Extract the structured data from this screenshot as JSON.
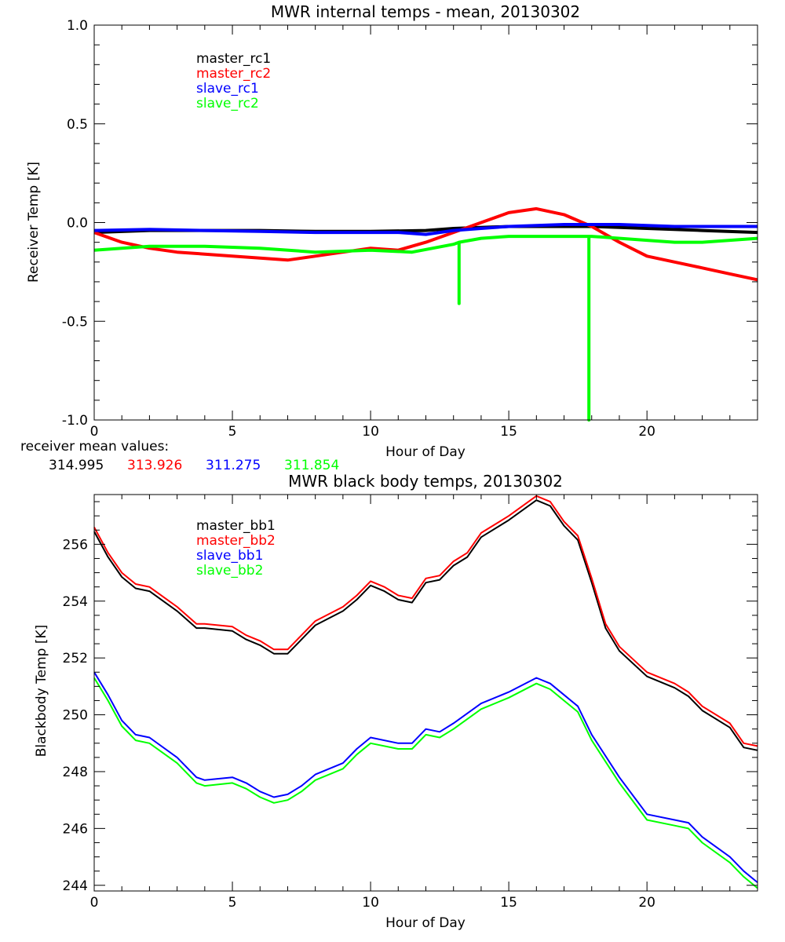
{
  "colors": {
    "black": "#000000",
    "red": "#ff0000",
    "blue": "#0000ff",
    "green": "#00ff00"
  },
  "mean_values": {
    "label": "receiver mean values:",
    "values": [
      "314.995",
      "313.926",
      "311.275",
      "311.854"
    ]
  },
  "chart_data": [
    {
      "type": "line",
      "title": "MWR internal temps - mean, 20130302",
      "xlabel": "Hour of Day",
      "ylabel": "Receiver Temp [K]",
      "xlim": [
        0,
        24
      ],
      "ylim": [
        -1.0,
        1.0
      ],
      "xticks": [
        "0",
        "5",
        "10",
        "15",
        "20"
      ],
      "yticks": [
        "-1.0",
        "-0.5",
        "0.0",
        "0.5",
        "1.0"
      ],
      "legend_placement": "top-left",
      "series": [
        {
          "name": "master_rc1",
          "color": "#000000",
          "x": [
            0,
            2,
            4,
            6,
            8,
            10,
            12,
            13,
            15,
            18,
            20,
            22,
            24
          ],
          "y": [
            -0.05,
            -0.04,
            -0.04,
            -0.04,
            -0.045,
            -0.045,
            -0.04,
            -0.03,
            -0.02,
            -0.02,
            -0.03,
            -0.04,
            -0.05
          ]
        },
        {
          "name": "master_rc2",
          "color": "#ff0000",
          "x": [
            0,
            1,
            2,
            3,
            4,
            5,
            6,
            7,
            8,
            9,
            10,
            11,
            12,
            13,
            14,
            15,
            16,
            17,
            18,
            19,
            20,
            21,
            22,
            23,
            24
          ],
          "y": [
            -0.05,
            -0.1,
            -0.13,
            -0.15,
            -0.16,
            -0.17,
            -0.18,
            -0.19,
            -0.17,
            -0.15,
            -0.13,
            -0.14,
            -0.1,
            -0.05,
            0.0,
            0.05,
            0.07,
            0.04,
            -0.02,
            -0.1,
            -0.17,
            -0.2,
            -0.23,
            -0.26,
            -0.29
          ]
        },
        {
          "name": "slave_rc1",
          "color": "#0000ff",
          "x": [
            0,
            2,
            4,
            6,
            8,
            10,
            11,
            12,
            13,
            14,
            15,
            17,
            19,
            21,
            24
          ],
          "y": [
            -0.04,
            -0.035,
            -0.04,
            -0.045,
            -0.05,
            -0.05,
            -0.05,
            -0.06,
            -0.04,
            -0.03,
            -0.02,
            -0.01,
            -0.01,
            -0.02,
            -0.02
          ]
        },
        {
          "name": "slave_rc2",
          "color": "#00ff00",
          "x": [
            0,
            2,
            4,
            6,
            8,
            10,
            11.5,
            13,
            13.2,
            13.2,
            13.2,
            14,
            15,
            17,
            17.9,
            17.9,
            17.9,
            18,
            20,
            21,
            22,
            24
          ],
          "y": [
            -0.14,
            -0.12,
            -0.12,
            -0.13,
            -0.15,
            -0.14,
            -0.15,
            -0.11,
            -0.1,
            -0.41,
            -0.1,
            -0.08,
            -0.07,
            -0.07,
            -0.07,
            -1.0,
            -0.07,
            -0.07,
            -0.09,
            -0.1,
            -0.1,
            -0.08
          ]
        }
      ]
    },
    {
      "type": "line",
      "title": "MWR black body temps, 20130302",
      "xlabel": "Hour of Day",
      "ylabel": "Blackbody Temp [K]",
      "xlim": [
        0,
        24
      ],
      "ylim": [
        243.8,
        257.75
      ],
      "xticks": [
        "0",
        "5",
        "10",
        "15",
        "20"
      ],
      "yticks": [
        "244",
        "246",
        "248",
        "250",
        "252",
        "254",
        "256"
      ],
      "legend_placement": "top-left",
      "series": [
        {
          "name": "master_bb1",
          "color": "#000000",
          "x": [
            0,
            0.5,
            1,
            1.5,
            2,
            3,
            3.7,
            4,
            5,
            5.5,
            6,
            6.5,
            7,
            7.5,
            8,
            9,
            9.5,
            10,
            10.5,
            11,
            11.5,
            12,
            12.5,
            13,
            13.5,
            14,
            15,
            16,
            16.5,
            17,
            17.5,
            18,
            18.5,
            19,
            20,
            21,
            21.5,
            22,
            23,
            23.5,
            24
          ],
          "y": [
            256.45,
            255.55,
            254.85,
            254.45,
            254.35,
            253.65,
            253.05,
            253.05,
            252.95,
            252.65,
            252.45,
            252.15,
            252.15,
            252.65,
            253.15,
            253.65,
            254.05,
            254.55,
            254.35,
            254.05,
            253.95,
            254.65,
            254.75,
            255.25,
            255.55,
            256.25,
            256.85,
            257.55,
            257.35,
            256.65,
            256.15,
            254.65,
            253.05,
            252.25,
            251.35,
            250.95,
            250.65,
            250.15,
            249.55,
            248.85,
            248.75
          ]
        },
        {
          "name": "master_bb2",
          "color": "#ff0000",
          "x": [
            0,
            0.5,
            1,
            1.5,
            2,
            3,
            3.7,
            4,
            5,
            5.5,
            6,
            6.5,
            7,
            7.5,
            8,
            9,
            9.5,
            10,
            10.5,
            11,
            11.5,
            12,
            12.5,
            13,
            13.5,
            14,
            15,
            16,
            16.5,
            17,
            17.5,
            18,
            18.5,
            19,
            20,
            21,
            21.5,
            22,
            23,
            23.5,
            24
          ],
          "y": [
            256.6,
            255.7,
            255.0,
            254.6,
            254.5,
            253.8,
            253.2,
            253.2,
            253.1,
            252.8,
            252.6,
            252.3,
            252.3,
            252.8,
            253.3,
            253.8,
            254.2,
            254.7,
            254.5,
            254.2,
            254.1,
            254.8,
            254.9,
            255.4,
            255.7,
            256.4,
            257.0,
            257.7,
            257.5,
            256.8,
            256.3,
            254.8,
            253.2,
            252.4,
            251.5,
            251.1,
            250.8,
            250.3,
            249.7,
            249.0,
            248.9
          ]
        },
        {
          "name": "slave_bb1",
          "color": "#0000ff",
          "x": [
            0,
            0.5,
            1,
            1.5,
            2,
            3,
            3.7,
            4,
            5,
            5.5,
            6,
            6.5,
            7,
            7.5,
            8,
            9,
            9.5,
            10,
            11,
            11.5,
            12,
            12.5,
            13,
            14,
            15,
            16,
            16.5,
            17,
            17.5,
            18,
            19,
            20,
            21,
            21.5,
            22,
            23,
            23.5,
            24
          ],
          "y": [
            251.5,
            250.7,
            249.8,
            249.3,
            249.2,
            248.5,
            247.8,
            247.7,
            247.8,
            247.6,
            247.3,
            247.1,
            247.2,
            247.5,
            247.9,
            248.3,
            248.8,
            249.2,
            249.0,
            249.0,
            249.5,
            249.4,
            249.7,
            250.4,
            250.8,
            251.3,
            251.1,
            250.7,
            250.3,
            249.3,
            247.8,
            246.5,
            246.3,
            246.2,
            245.7,
            245.0,
            244.5,
            244.1
          ]
        },
        {
          "name": "slave_bb2",
          "color": "#00ff00",
          "x": [
            0,
            0.5,
            1,
            1.5,
            2,
            3,
            3.7,
            4,
            5,
            5.5,
            6,
            6.5,
            7,
            7.5,
            8,
            9,
            9.5,
            10,
            11,
            11.5,
            12,
            12.5,
            13,
            14,
            15,
            16,
            16.5,
            17,
            17.5,
            18,
            19,
            20,
            21,
            21.5,
            22,
            23,
            23.5,
            24
          ],
          "y": [
            251.3,
            250.5,
            249.6,
            249.1,
            249.0,
            248.3,
            247.6,
            247.5,
            247.6,
            247.4,
            247.1,
            246.9,
            247.0,
            247.3,
            247.7,
            248.1,
            248.6,
            249.0,
            248.8,
            248.8,
            249.3,
            249.2,
            249.5,
            250.2,
            250.6,
            251.1,
            250.9,
            250.5,
            250.1,
            249.1,
            247.6,
            246.3,
            246.1,
            246.0,
            245.5,
            244.8,
            244.3,
            243.9
          ]
        }
      ]
    }
  ]
}
